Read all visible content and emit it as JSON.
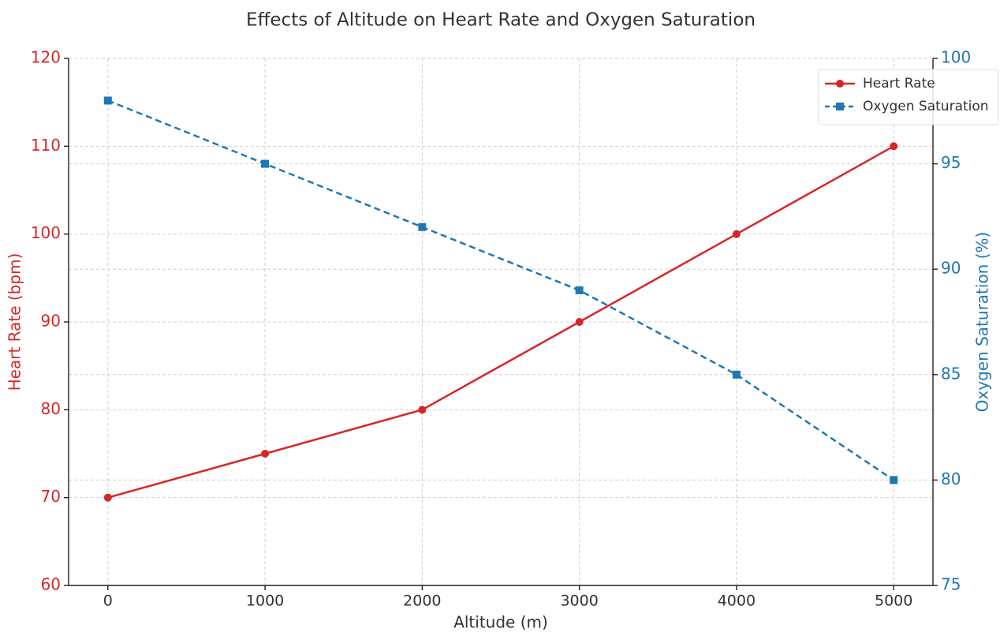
{
  "chart_data": {
    "type": "line",
    "title": "Effects of Altitude on Heart Rate and Oxygen Saturation",
    "xlabel": "Altitude (m)",
    "ylabel": "Heart Rate (bpm)",
    "y2label": "Oxygen Saturation (%)",
    "x": [
      0,
      1000,
      2000,
      3000,
      4000,
      5000
    ],
    "series": [
      {
        "name": "Heart Rate",
        "color": "#d62728",
        "linestyle": "solid",
        "marker": "circle",
        "values": [
          70,
          75,
          80,
          90,
          100,
          110
        ]
      },
      {
        "name": "Oxygen Saturation",
        "color": "#1f77b4",
        "linestyle": "dashed",
        "marker": "square",
        "axis": "y2",
        "values": [
          98,
          95,
          92,
          89,
          85,
          80
        ]
      }
    ],
    "xlim": [
      -250,
      5250
    ],
    "xticks": [
      0,
      1000,
      2000,
      3000,
      4000,
      5000
    ],
    "ylim": [
      60,
      120
    ],
    "yticks": [
      60,
      70,
      80,
      90,
      100,
      110,
      120
    ],
    "y2lim": [
      75,
      100
    ],
    "y2ticks": [
      75,
      80,
      85,
      90,
      95,
      100
    ],
    "grid": true,
    "legend": "upper right"
  }
}
